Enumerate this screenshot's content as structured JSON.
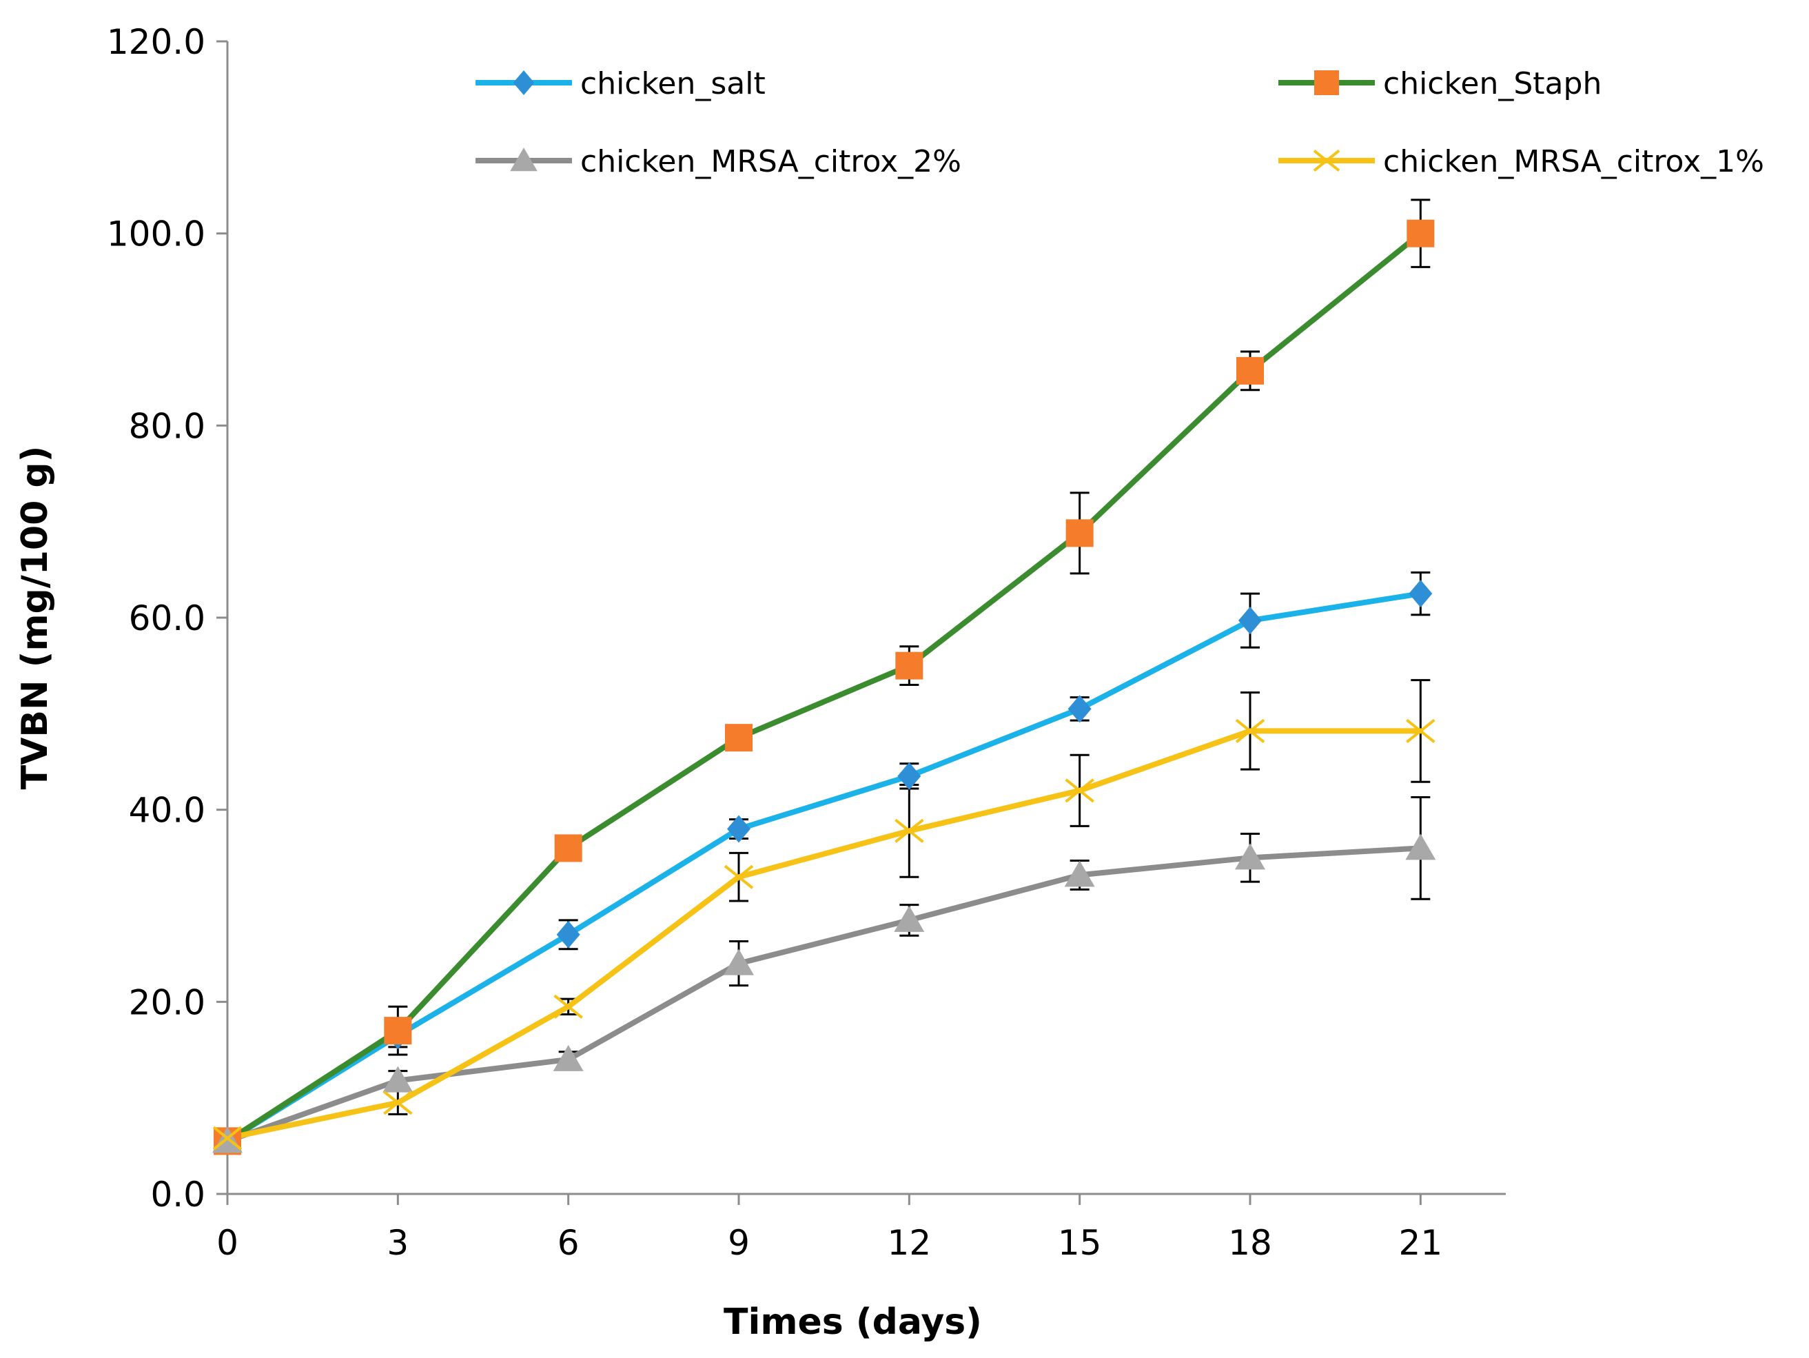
{
  "chart_data": {
    "type": "line",
    "title": "",
    "xlabel": "Times (days)",
    "ylabel": "TVBN (mg/100 g)",
    "x": [
      0,
      3,
      6,
      9,
      12,
      15,
      18,
      21
    ],
    "x_tick_labels": [
      "0",
      "3",
      "6",
      "9",
      "12",
      "15",
      "18",
      "21"
    ],
    "xlim": [
      0,
      22.5
    ],
    "ylim": [
      0,
      120
    ],
    "y_ticks": [
      0,
      20,
      40,
      60,
      80,
      100,
      120
    ],
    "y_tick_labels": [
      "0.0",
      "20.0",
      "40.0",
      "60.0",
      "80.0",
      "100.0",
      "120.0"
    ],
    "grid": false,
    "legend_position": "top",
    "series": [
      {
        "name": "chicken_salt",
        "color": "#1ab2e8",
        "marker": "diamond",
        "marker_color": "#2e8fd6",
        "values": [
          5.5,
          16.5,
          27.0,
          38.0,
          43.5,
          50.5,
          59.7,
          62.5
        ],
        "errors": [
          0.6,
          1.2,
          1.5,
          1.0,
          1.3,
          1.2,
          2.8,
          2.2
        ]
      },
      {
        "name": "chicken_Staph",
        "color": "#3b8c2e",
        "marker": "square",
        "marker_color": "#f57c2a",
        "values": [
          5.5,
          17.0,
          36.0,
          47.5,
          55.0,
          68.8,
          85.7,
          100.0
        ],
        "errors": [
          0.6,
          2.5,
          0.8,
          1.3,
          2.0,
          4.2,
          2.0,
          3.5
        ]
      },
      {
        "name": "chicken_MRSA_citrox_2%",
        "color": "#8c8c8c",
        "marker": "triangle",
        "marker_color": "#a8a8a8",
        "values": [
          5.5,
          11.8,
          14.0,
          24.0,
          28.5,
          33.2,
          35.0,
          36.0
        ],
        "errors": [
          0.6,
          1.0,
          0.8,
          2.3,
          1.6,
          1.5,
          2.5,
          5.3
        ]
      },
      {
        "name": "chicken_MRSA_citrox_1%",
        "color": "#f5c215",
        "marker": "x",
        "marker_color": "#f5c215",
        "values": [
          5.8,
          9.5,
          19.5,
          33.0,
          37.8,
          42.0,
          48.2,
          48.2
        ],
        "errors": [
          0.6,
          1.2,
          0.8,
          2.5,
          4.8,
          3.7,
          4.0,
          5.3
        ]
      }
    ]
  }
}
